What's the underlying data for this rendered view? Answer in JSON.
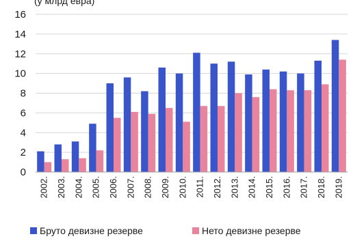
{
  "chart_data": {
    "type": "bar",
    "title_fragment": "(у млрд евра)",
    "categories": [
      "2002.",
      "2003.",
      "2004.",
      "2005.",
      "2006.",
      "2007.",
      "2008.",
      "2009.",
      "2010.",
      "2011.",
      "2012.",
      "2013.",
      "2014.",
      "2015.",
      "2016.",
      "2017.",
      "2018.",
      "2019."
    ],
    "series": [
      {
        "name": "Бруто девизне резерве",
        "color": "#3a55c9",
        "values": [
          2.1,
          2.8,
          3.1,
          4.9,
          9.0,
          9.6,
          8.2,
          10.6,
          10.0,
          12.1,
          11.0,
          11.2,
          9.9,
          10.4,
          10.2,
          10.0,
          11.3,
          13.4
        ]
      },
      {
        "name": "Нето девизне резерве",
        "color": "#e8849c",
        "values": [
          1.0,
          1.3,
          1.4,
          2.2,
          5.5,
          6.1,
          5.9,
          6.5,
          5.1,
          6.7,
          6.7,
          8.0,
          7.6,
          8.4,
          8.3,
          8.3,
          8.9,
          11.4
        ]
      }
    ],
    "ylim": [
      0,
      16
    ],
    "yticks": [
      0,
      2,
      4,
      6,
      8,
      10,
      12,
      14,
      16
    ],
    "grid": true,
    "legend": "bottom"
  }
}
